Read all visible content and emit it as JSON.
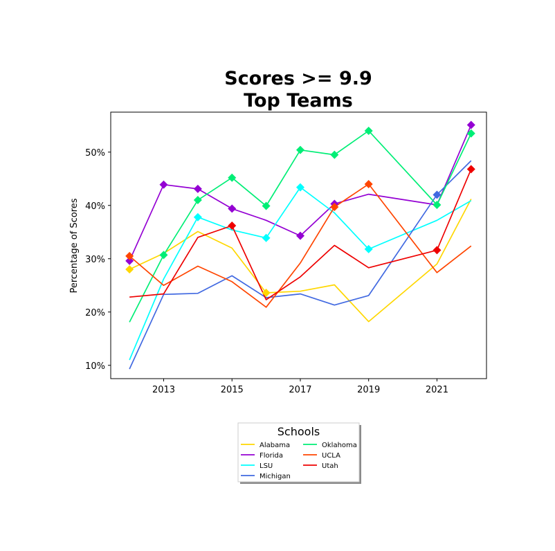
{
  "chart_data": {
    "type": "line",
    "title": [
      "Scores >= 9.9",
      "Top Teams"
    ],
    "xlabel": "",
    "ylabel": "Percentage of Scores",
    "xlim": [
      2011.45,
      2022.45
    ],
    "ylim": [
      0.075,
      0.575
    ],
    "xticks": [
      2013,
      2015,
      2017,
      2019,
      2021
    ],
    "xtick_labels": [
      "2013",
      "2015",
      "2017",
      "2019",
      "2021"
    ],
    "yticks": [
      0.1,
      0.2,
      0.3,
      0.4,
      0.5
    ],
    "ytick_labels": [
      "10%",
      "20%",
      "30%",
      "40%",
      "50%"
    ],
    "grid": false,
    "legend": {
      "title": "Schools",
      "placement": "below-center",
      "columns": 2
    },
    "x": [
      2012,
      2013,
      2014,
      2015,
      2016,
      2017,
      2018,
      2019,
      2021,
      2022
    ],
    "series": [
      {
        "name": "Alabama",
        "color": "#FFD700",
        "values": [
          0.28,
          0.31,
          0.351,
          0.32,
          0.236,
          0.239,
          0.251,
          0.182,
          0.29,
          0.412
        ],
        "markers": [
          0,
          4
        ]
      },
      {
        "name": "Florida",
        "color": "#9400D3",
        "values": [
          0.296,
          0.439,
          0.431,
          0.394,
          0.372,
          0.343,
          0.403,
          0.421,
          0.401,
          0.551
        ],
        "markers": [
          0,
          1,
          2,
          3,
          5,
          6,
          9
        ]
      },
      {
        "name": "LSU",
        "color": "#00FFFF",
        "values": [
          0.11,
          0.262,
          0.378,
          0.354,
          0.339,
          0.434,
          0.386,
          0.318,
          0.372,
          0.409
        ],
        "markers": [
          2,
          4,
          5,
          7
        ]
      },
      {
        "name": "Michigan",
        "color": "#4169E1",
        "values": [
          0.093,
          0.233,
          0.235,
          0.268,
          0.227,
          0.234,
          0.213,
          0.231,
          0.42,
          0.484
        ],
        "markers": [
          8
        ]
      },
      {
        "name": "Oklahoma",
        "color": "#00EE76",
        "values": [
          0.181,
          0.307,
          0.41,
          0.452,
          0.399,
          0.504,
          0.495,
          0.54,
          0.401,
          0.535
        ],
        "markers": [
          1,
          2,
          3,
          4,
          5,
          6,
          7,
          8,
          9
        ]
      },
      {
        "name": "UCLA",
        "color": "#FF4500",
        "values": [
          0.305,
          0.25,
          0.286,
          0.257,
          0.209,
          0.292,
          0.397,
          0.44,
          0.274,
          0.324
        ],
        "markers": [
          0,
          6,
          7
        ]
      },
      {
        "name": "Utah",
        "color": "#EE0000",
        "values": [
          0.228,
          0.234,
          0.34,
          0.362,
          0.223,
          0.266,
          0.325,
          0.283,
          0.316,
          0.468
        ],
        "markers": [
          3,
          8,
          9
        ]
      }
    ]
  }
}
